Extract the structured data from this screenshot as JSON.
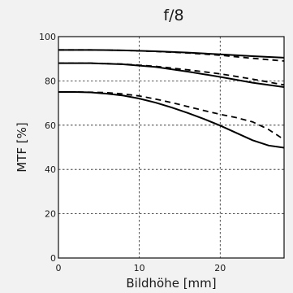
{
  "chart_data": {
    "type": "line",
    "title": "f/8",
    "xlabel": "Bildhöhe [mm]",
    "ylabel": "MTF [%]",
    "xlim": [
      0,
      27.9
    ],
    "ylim": [
      0,
      100
    ],
    "x_ticks": [
      0,
      10,
      20
    ],
    "y_ticks": [
      0,
      20,
      40,
      60,
      80,
      100
    ],
    "grid": true,
    "x_grid": [
      10,
      20
    ],
    "y_grid": [
      20,
      40,
      60,
      80
    ],
    "series": [
      {
        "style": "solid",
        "x": [
          0,
          4,
          8,
          12,
          16,
          20,
          24,
          27.9
        ],
        "y": [
          94,
          94,
          93.8,
          93.4,
          92.8,
          92,
          91.2,
          90.5
        ]
      },
      {
        "style": "dashed",
        "x": [
          0,
          4,
          8,
          12,
          16,
          20,
          24,
          27.9
        ],
        "y": [
          94,
          94,
          93.8,
          93.3,
          92.6,
          91.6,
          90.2,
          89
        ]
      },
      {
        "style": "solid",
        "x": [
          0,
          4,
          8,
          12,
          16,
          20,
          24,
          27.9
        ],
        "y": [
          88,
          88,
          87.5,
          86.3,
          84.2,
          81.8,
          79.2,
          77.2
        ]
      },
      {
        "style": "dashed",
        "x": [
          0,
          4,
          8,
          12,
          16,
          20,
          24,
          27.9
        ],
        "y": [
          88,
          88,
          87.6,
          86.6,
          85,
          83.2,
          80.8,
          78.2
        ]
      },
      {
        "style": "solid",
        "x": [
          0,
          2,
          4,
          6,
          8,
          10,
          12,
          14,
          16,
          18,
          20,
          22,
          24,
          26,
          27.9
        ],
        "y": [
          75,
          75,
          74.8,
          74.2,
          73.4,
          72,
          70.2,
          68,
          65.5,
          62.8,
          59.8,
          56.5,
          53.2,
          50.8,
          49.8
        ]
      },
      {
        "style": "dashed",
        "x": [
          0,
          2,
          4,
          6,
          8,
          10,
          12,
          14,
          16,
          18,
          20,
          22,
          24,
          26,
          27.9
        ],
        "y": [
          75,
          75,
          74.9,
          74.7,
          74.1,
          73.2,
          71.8,
          70.2,
          68.4,
          66.6,
          64.9,
          63.4,
          61.5,
          58,
          53.5
        ]
      }
    ]
  }
}
